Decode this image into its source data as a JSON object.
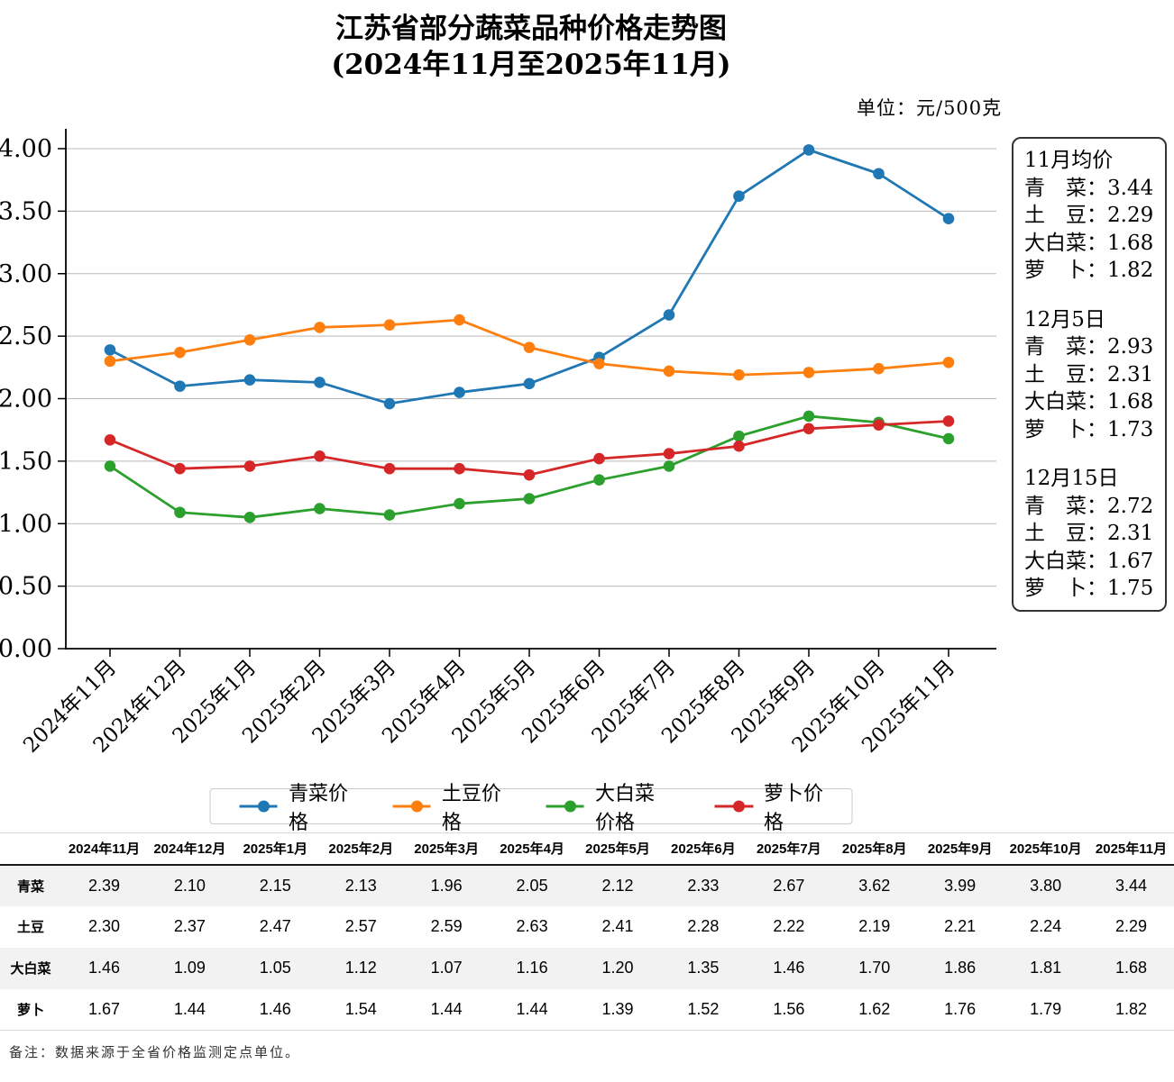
{
  "title": {
    "line1": "江苏省部分蔬菜品种价格走势图",
    "line2": "(2024年11月至2025年11月)"
  },
  "unit_label": "单位：元/500克",
  "chart_data": {
    "type": "line",
    "categories": [
      "2024年11月",
      "2024年12月",
      "2025年1月",
      "2025年2月",
      "2025年3月",
      "2025年4月",
      "2025年5月",
      "2025年6月",
      "2025年7月",
      "2025年8月",
      "2025年9月",
      "2025年10月",
      "2025年11月"
    ],
    "series": [
      {
        "name": "青菜价格",
        "color": "#1f77b4",
        "values": [
          2.39,
          2.1,
          2.15,
          2.13,
          1.96,
          2.05,
          2.12,
          2.33,
          2.67,
          3.62,
          3.99,
          3.8,
          3.44
        ]
      },
      {
        "name": "土豆价格",
        "color": "#ff7f0e",
        "values": [
          2.3,
          2.37,
          2.47,
          2.57,
          2.59,
          2.63,
          2.41,
          2.28,
          2.22,
          2.19,
          2.21,
          2.24,
          2.29
        ]
      },
      {
        "name": "大白菜价格",
        "color": "#2ca02c",
        "values": [
          1.46,
          1.09,
          1.05,
          1.12,
          1.07,
          1.16,
          1.2,
          1.35,
          1.46,
          1.7,
          1.86,
          1.81,
          1.68
        ]
      },
      {
        "name": "萝卜价格",
        "color": "#d62728",
        "values": [
          1.67,
          1.44,
          1.46,
          1.54,
          1.44,
          1.44,
          1.39,
          1.52,
          1.56,
          1.62,
          1.76,
          1.79,
          1.82
        ]
      }
    ],
    "title": "江苏省部分蔬菜品种价格走势图(2024年11月至2025年11月)",
    "xlabel": "",
    "ylabel": "",
    "ylim": [
      0,
      4.0
    ],
    "ytick_step": 0.5,
    "grid": true,
    "legend_position": "bottom",
    "grid_color": "#b8b8b8",
    "axis_color": "#000000"
  },
  "info_box": {
    "separator": "：",
    "sections": [
      {
        "heading": "11月均价",
        "rows": [
          {
            "label": "青　菜",
            "value": "3.44"
          },
          {
            "label": "土　豆",
            "value": "2.29"
          },
          {
            "label": "大白菜",
            "value": "1.68"
          },
          {
            "label": "萝　卜",
            "value": "1.82"
          }
        ]
      },
      {
        "heading": "12月5日",
        "rows": [
          {
            "label": "青　菜",
            "value": "2.93"
          },
          {
            "label": "土　豆",
            "value": "2.31"
          },
          {
            "label": "大白菜",
            "value": "1.68"
          },
          {
            "label": "萝　卜",
            "value": "1.73"
          }
        ]
      },
      {
        "heading": "12月15日",
        "rows": [
          {
            "label": "青　菜",
            "value": "2.72"
          },
          {
            "label": "土　豆",
            "value": "2.31"
          },
          {
            "label": "大白菜",
            "value": "1.67"
          },
          {
            "label": "萝　卜",
            "value": "1.75"
          }
        ]
      }
    ]
  },
  "table": {
    "columns": [
      "2024年11月",
      "2024年12月",
      "2025年1月",
      "2025年2月",
      "2025年3月",
      "2025年4月",
      "2025年5月",
      "2025年6月",
      "2025年7月",
      "2025年8月",
      "2025年9月",
      "2025年10月",
      "2025年11月"
    ],
    "rows": [
      {
        "label": "青菜",
        "values": [
          "2.39",
          "2.10",
          "2.15",
          "2.13",
          "1.96",
          "2.05",
          "2.12",
          "2.33",
          "2.67",
          "3.62",
          "3.99",
          "3.80",
          "3.44"
        ]
      },
      {
        "label": "土豆",
        "values": [
          "2.30",
          "2.37",
          "2.47",
          "2.57",
          "2.59",
          "2.63",
          "2.41",
          "2.28",
          "2.22",
          "2.19",
          "2.21",
          "2.24",
          "2.29"
        ]
      },
      {
        "label": "大白菜",
        "values": [
          "1.46",
          "1.09",
          "1.05",
          "1.12",
          "1.07",
          "1.16",
          "1.20",
          "1.35",
          "1.46",
          "1.70",
          "1.86",
          "1.81",
          "1.68"
        ]
      },
      {
        "label": "萝卜",
        "values": [
          "1.67",
          "1.44",
          "1.46",
          "1.54",
          "1.44",
          "1.44",
          "1.39",
          "1.52",
          "1.56",
          "1.62",
          "1.76",
          "1.79",
          "1.82"
        ]
      }
    ]
  },
  "footnote": "备注：数据来源于全省价格监测定点单位。"
}
